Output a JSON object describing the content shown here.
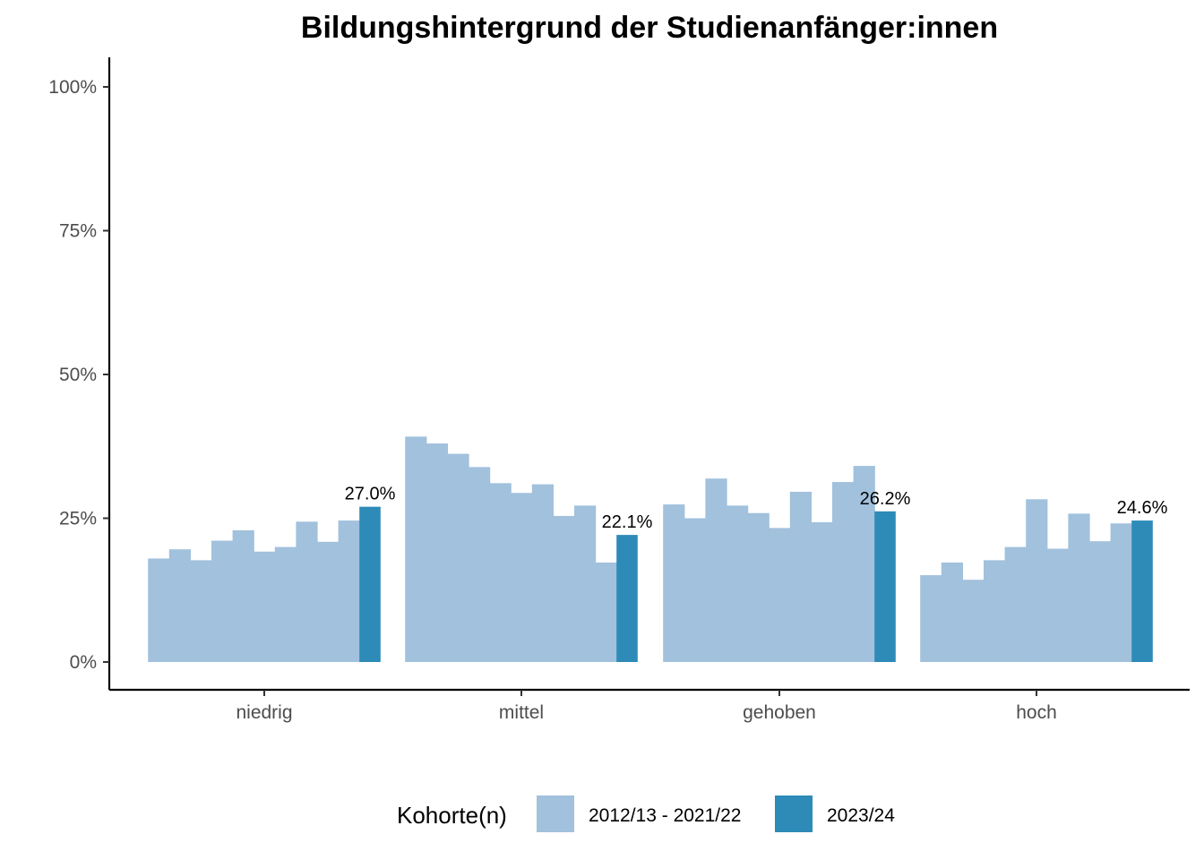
{
  "chart_data": {
    "type": "bar",
    "title": "Bildungshintergrund der Studienanfänger:innen",
    "xlabel": "",
    "ylabel": "",
    "ylim": [
      0,
      1.05
    ],
    "y_ticks": [
      0,
      0.25,
      0.5,
      0.75,
      1.0
    ],
    "y_tick_labels": [
      "0%",
      "25%",
      "50%",
      "75%",
      "100%"
    ],
    "categories": [
      "niedrig",
      "mittel",
      "gehoben",
      "hoch"
    ],
    "series": [
      {
        "name": "2012/13 - 2021/22",
        "color": "#a1c1dd",
        "values": [
          [
            0.18,
            0.196,
            0.177,
            0.211,
            0.229,
            0.192,
            0.2,
            0.244,
            0.209,
            0.246
          ],
          [
            0.392,
            0.38,
            0.362,
            0.339,
            0.311,
            0.294,
            0.309,
            0.254,
            0.272,
            0.173
          ],
          [
            0.274,
            0.25,
            0.319,
            0.272,
            0.259,
            0.233,
            0.296,
            0.243,
            0.313,
            0.341
          ],
          [
            0.151,
            0.173,
            0.143,
            0.177,
            0.2,
            0.283,
            0.197,
            0.258,
            0.21,
            0.241
          ]
        ]
      },
      {
        "name": "2023/24",
        "color": "#2e8bb8",
        "values": [
          0.27,
          0.221,
          0.262,
          0.246
        ],
        "labels": [
          "27.0%",
          "22.1%",
          "26.2%",
          "24.6%"
        ]
      }
    ],
    "legend": {
      "title": "Kohorte(n)",
      "position": "bottom",
      "entries": [
        "2012/13 - 2021/22",
        "2023/24"
      ]
    }
  }
}
